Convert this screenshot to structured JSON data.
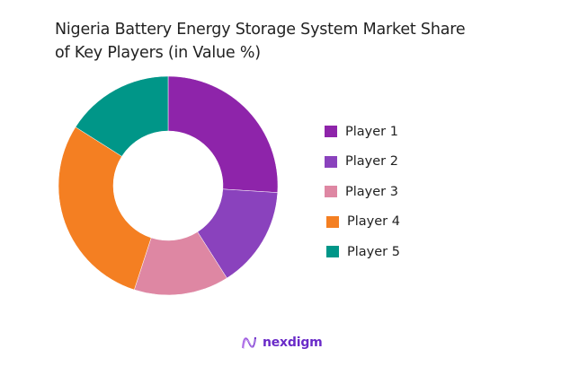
{
  "title_line1": "Nigeria Battery Energy Storage System Market Share",
  "title_line2": "of Key Players (in Value %)",
  "chart_data": {
    "type": "pie",
    "subtype": "donut",
    "title": "Nigeria Battery Energy Storage System Market Share of Key Players (in Value %)",
    "categories": [
      "Player 1",
      "Player 2",
      "Player 3",
      "Player 4",
      "Player 5"
    ],
    "values": [
      26,
      15,
      14,
      29,
      16
    ],
    "colors": [
      "#8e24aa",
      "#8a42bd",
      "#de87a3",
      "#f47f22",
      "#009688"
    ],
    "legend_position": "right",
    "start_angle": "12 o'clock, clockwise"
  },
  "legend": [
    {
      "label": "Player 1",
      "color": "#8e24aa"
    },
    {
      "label": "Player 2",
      "color": "#8a42bd"
    },
    {
      "label": "Player 3",
      "color": "#de87a3"
    },
    {
      "label": "Player 4",
      "color": "#f47f22"
    },
    {
      "label": "Player 5",
      "color": "#009688"
    }
  ],
  "logo": {
    "text": "nexdigm",
    "icon": "nexdigm-wave-icon"
  }
}
